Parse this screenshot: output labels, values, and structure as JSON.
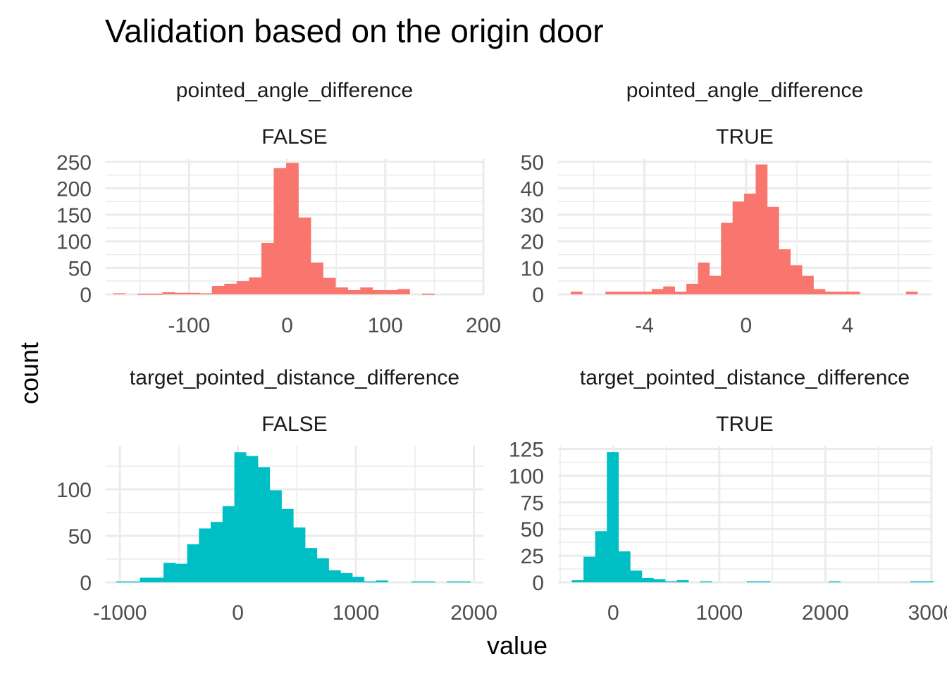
{
  "title": "Validation based on the origin door",
  "xlabel": "value",
  "ylabel": "count",
  "chart_data": [
    {
      "type": "bar",
      "panel": "top-left",
      "strip_top": "pointed_angle_difference",
      "strip_bottom": "FALSE",
      "color": "#F8766D",
      "xlim": [
        -185,
        200
      ],
      "ylim": [
        0,
        255
      ],
      "xticks": [
        {
          "v": -100,
          "label": "-100"
        },
        {
          "v": 0,
          "label": "0"
        },
        {
          "v": 100,
          "label": "100"
        },
        {
          "v": 200,
          "label": "200"
        }
      ],
      "yticks": [
        {
          "v": 0,
          "label": "0"
        },
        {
          "v": 50,
          "label": "50"
        },
        {
          "v": 100,
          "label": "100"
        },
        {
          "v": 150,
          "label": "150"
        },
        {
          "v": 200,
          "label": "200"
        },
        {
          "v": 250,
          "label": "250"
        }
      ],
      "bin_start": -177.5,
      "bin_width": 12.6,
      "counts": [
        2,
        0,
        1,
        1,
        4,
        3,
        3,
        2,
        16,
        20,
        25,
        32,
        97,
        238,
        248,
        145,
        60,
        31,
        13,
        8,
        13,
        8,
        8,
        10,
        0,
        1,
        0,
        0
      ]
    },
    {
      "type": "bar",
      "panel": "top-right",
      "strip_top": "pointed_angle_difference",
      "strip_bottom": "TRUE",
      "color": "#F8766D",
      "xlim": [
        -7.4,
        7.3
      ],
      "ylim": [
        0,
        51
      ],
      "xticks": [
        {
          "v": -4,
          "label": "-4"
        },
        {
          "v": 0,
          "label": "0"
        },
        {
          "v": 4,
          "label": "4"
        }
      ],
      "yticks": [
        {
          "v": 0,
          "label": "0"
        },
        {
          "v": 10,
          "label": "10"
        },
        {
          "v": 20,
          "label": "20"
        },
        {
          "v": 30,
          "label": "30"
        },
        {
          "v": 40,
          "label": "40"
        },
        {
          "v": 50,
          "label": "50"
        }
      ],
      "bin_start": -6.9,
      "bin_width": 0.455,
      "counts": [
        1,
        0,
        0,
        1,
        1,
        1,
        1,
        2,
        3,
        1,
        4,
        12,
        7,
        27,
        35,
        38,
        49,
        33,
        17,
        11,
        7,
        2,
        1,
        1,
        1,
        0,
        0,
        0,
        0,
        1
      ]
    },
    {
      "type": "bar",
      "panel": "bottom-left",
      "strip_top": "target_pointed_distance_difference",
      "strip_bottom": "FALSE",
      "color": "#00BFC4",
      "xlim": [
        -1120,
        2080
      ],
      "ylim": [
        0,
        147
      ],
      "xticks": [
        {
          "v": -1000,
          "label": "-1000"
        },
        {
          "v": 0,
          "label": "0"
        },
        {
          "v": 1000,
          "label": "1000"
        },
        {
          "v": 2000,
          "label": "2000"
        }
      ],
      "yticks": [
        {
          "v": 0,
          "label": "0"
        },
        {
          "v": 50,
          "label": "50"
        },
        {
          "v": 100,
          "label": "100"
        }
      ],
      "bin_start": -1030,
      "bin_width": 100,
      "counts": [
        1,
        1,
        5,
        5,
        21,
        20,
        41,
        58,
        65,
        82,
        140,
        136,
        124,
        99,
        79,
        59,
        37,
        26,
        13,
        10,
        6,
        1,
        2,
        0,
        0,
        1,
        1,
        0,
        1,
        1
      ]
    },
    {
      "type": "bar",
      "panel": "bottom-right",
      "strip_top": "target_pointed_distance_difference",
      "strip_bottom": "TRUE",
      "color": "#00BFC4",
      "xlim": [
        -520,
        3000
      ],
      "ylim": [
        0,
        128
      ],
      "xticks": [
        {
          "v": 0,
          "label": "0"
        },
        {
          "v": 1000,
          "label": "1000"
        },
        {
          "v": 2000,
          "label": "2000"
        },
        {
          "v": 3000,
          "label": "3000"
        }
      ],
      "yticks": [
        {
          "v": 0,
          "label": "0"
        },
        {
          "v": 25,
          "label": "25"
        },
        {
          "v": 50,
          "label": "50"
        },
        {
          "v": 75,
          "label": "75"
        },
        {
          "v": 100,
          "label": "100"
        },
        {
          "v": 125,
          "label": "125"
        }
      ],
      "bin_start": -390,
      "bin_width": 110,
      "counts": [
        2,
        24,
        48,
        122,
        29,
        11,
        4,
        3,
        1,
        2,
        0,
        1,
        0,
        0,
        0,
        1,
        1,
        0,
        0,
        0,
        0,
        0,
        1,
        0,
        0,
        0,
        0,
        0,
        0,
        1,
        1
      ]
    }
  ]
}
